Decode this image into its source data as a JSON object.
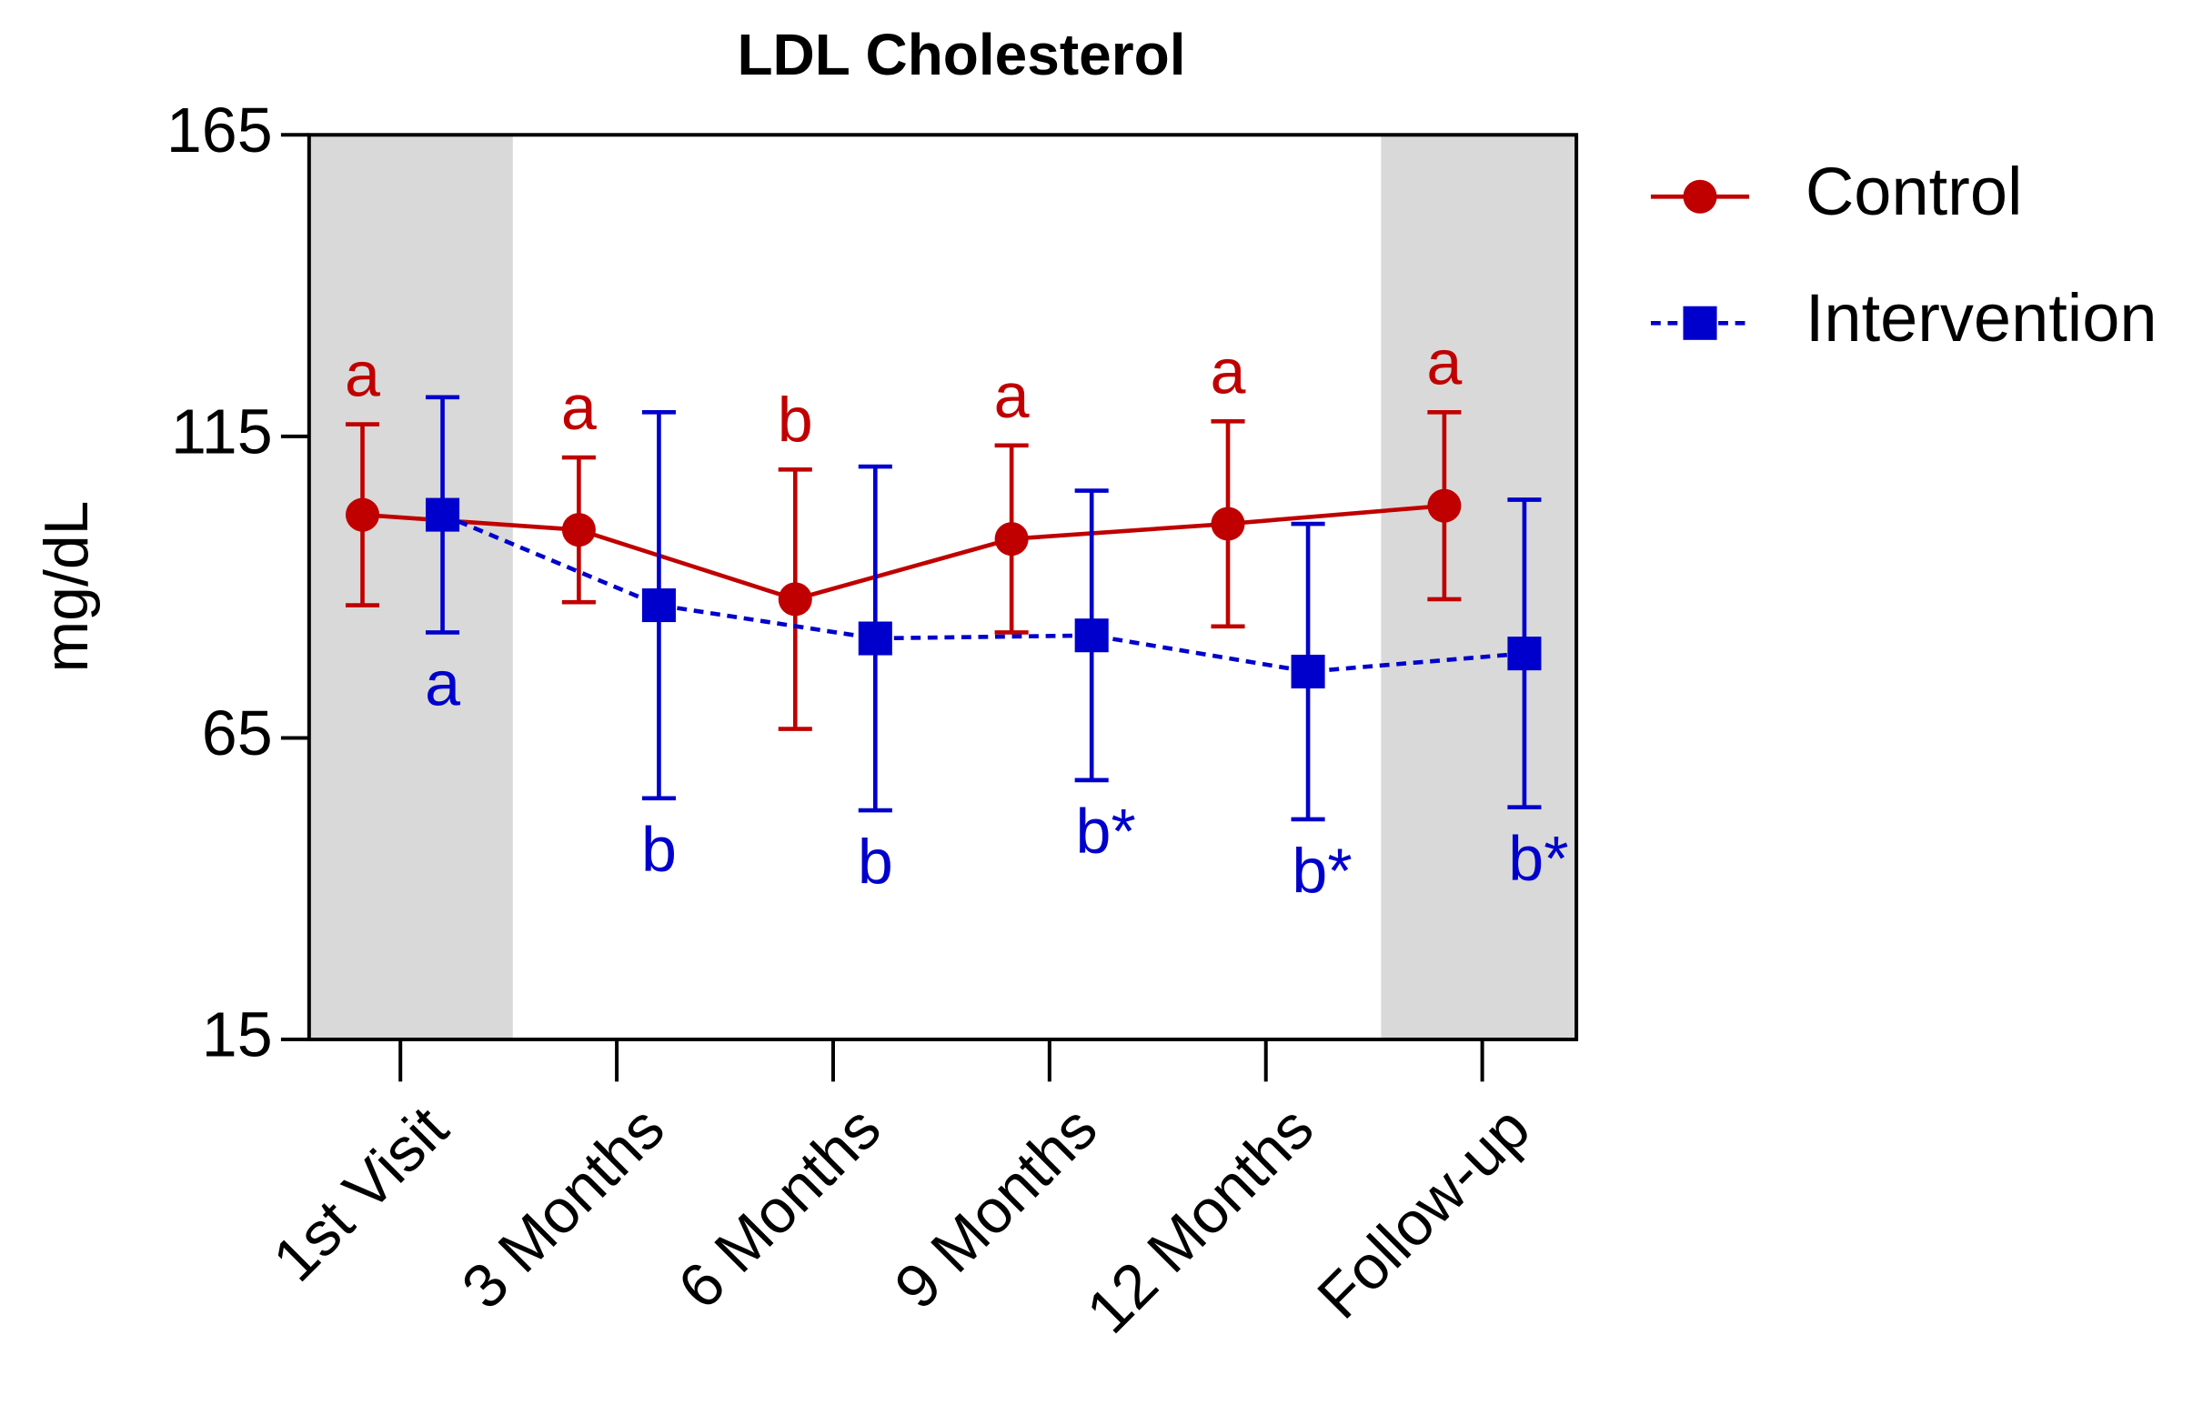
{
  "chart_data": {
    "type": "line",
    "title": "LDL Cholesterol",
    "y_label": "mg/dL",
    "categories": [
      "1st Visit",
      "3 Months",
      "6 Months",
      "9 Months",
      "12 Months",
      "Follow-up"
    ],
    "ylim": [
      15,
      165
    ],
    "yticks": [
      15,
      65,
      115,
      165
    ],
    "shaded_categories": [
      0,
      5
    ],
    "legend": "right",
    "series": [
      {
        "name": "Control",
        "color": "#c00000",
        "marker": "circle",
        "dash": false,
        "values": [
          102,
          99.5,
          88,
          98,
          100.5,
          103.5
        ],
        "errors": [
          15,
          12,
          21.5,
          15.5,
          17,
          15.5
        ],
        "labels": [
          "a",
          "a",
          "b",
          "a",
          "a",
          "a"
        ]
      },
      {
        "name": "Intervention",
        "color": "#0000cc",
        "marker": "square",
        "dash": true,
        "values": [
          102,
          87,
          81.5,
          82,
          76,
          79
        ],
        "errors": [
          19.5,
          32,
          28.5,
          24,
          24.5,
          25.5
        ],
        "labels": [
          "a",
          "b",
          "b",
          "b*",
          "b*",
          "b*"
        ]
      }
    ]
  }
}
